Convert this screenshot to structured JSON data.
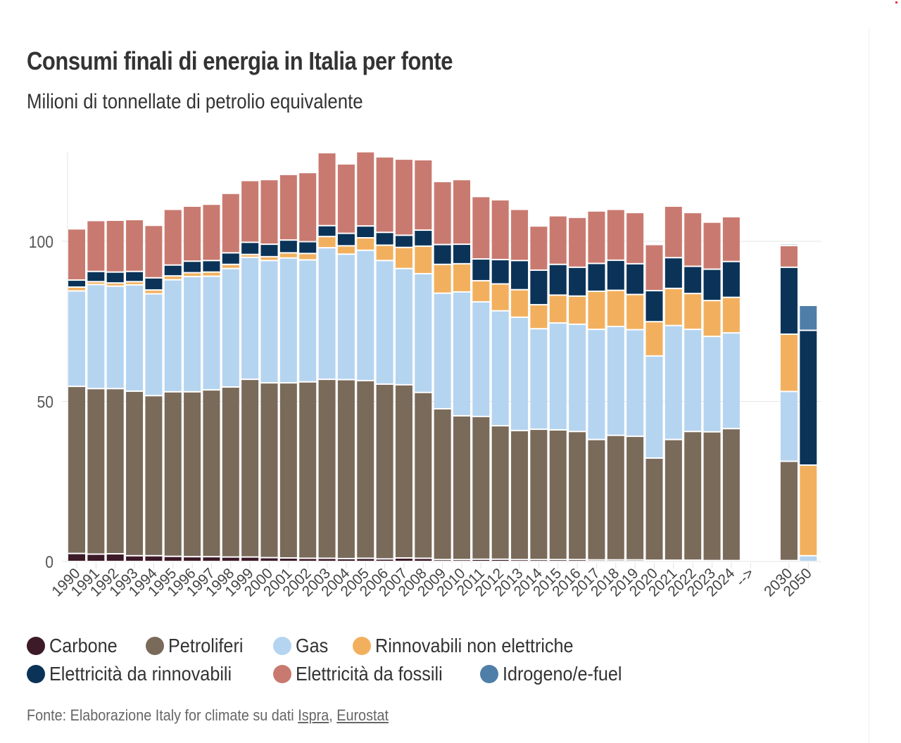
{
  "header": {
    "title": "Consumi finali di energia in Italia per fonte",
    "subtitle": "Milioni di tonnellate di petrolio equivalente"
  },
  "footer": {
    "prefix": "Fonte: Elaborazione Italy for climate su dati ",
    "link1": "Ispra",
    "separator": ", ",
    "link2": "Eurostat"
  },
  "chart_data": {
    "type": "bar",
    "stacked": true,
    "title": "Consumi finali di energia in Italia per fonte",
    "subtitle": "Milioni di tonnellate di petrolio equivalente",
    "xlabel": "",
    "ylabel": "",
    "ylim": [
      0,
      130
    ],
    "yticks": [
      0,
      50,
      100
    ],
    "grid": true,
    "legend_position": "bottom",
    "categories": [
      "1990",
      "1991",
      "1992",
      "1993",
      "1994",
      "1995",
      "1996",
      "1997",
      "1998",
      "1999",
      "2000",
      "2001",
      "2002",
      "2003",
      "2004",
      "2005",
      "2006",
      "2007",
      "2008",
      "2009",
      "2010",
      "2011",
      "2012",
      "2013",
      "2014",
      "2015",
      "2016",
      "2017",
      "2018",
      "2019",
      "2020",
      "2021",
      "2022",
      "2023",
      "2024",
      "-->",
      "2030",
      "2050"
    ],
    "gap_category": "-->",
    "series": [
      {
        "key": "carbone",
        "name": "Carbone",
        "color": "#3d1a28",
        "values": [
          2.5,
          2.3,
          2.4,
          1.8,
          1.8,
          1.6,
          1.5,
          1.5,
          1.4,
          1.4,
          1.2,
          1.1,
          1.0,
          1.0,
          0.9,
          1.0,
          0.8,
          1.1,
          1.0,
          0.6,
          0.6,
          0.7,
          0.7,
          0.6,
          0.6,
          0.6,
          0.6,
          0.5,
          0.5,
          0.5,
          0.4,
          0.4,
          0.4,
          0.3,
          0.3,
          null,
          0.3,
          0
        ]
      },
      {
        "key": "petroliferi",
        "name": "Petroliferi",
        "color": "#7a6a5a",
        "values": [
          52.2,
          51.7,
          51.6,
          51.4,
          50.0,
          51.4,
          51.5,
          52.1,
          53.1,
          55.5,
          54.6,
          54.7,
          55.1,
          55.9,
          55.9,
          55.5,
          54.6,
          54.1,
          51.8,
          47.1,
          44.9,
          44.6,
          41.7,
          40.3,
          40.7,
          40.5,
          40.0,
          37.6,
          38.9,
          38.6,
          31.9,
          37.7,
          40.2,
          40.2,
          41.2,
          null,
          31.0,
          0
        ]
      },
      {
        "key": "gas",
        "name": "Gas",
        "color": "#b5d4f0",
        "values": [
          29.8,
          32.5,
          32.0,
          33.2,
          31.8,
          35.0,
          36.0,
          35.5,
          37.0,
          38.1,
          38.2,
          39.0,
          38.1,
          41.1,
          39.2,
          40.7,
          38.6,
          36.3,
          37.1,
          36.1,
          38.7,
          35.8,
          35.9,
          35.4,
          31.4,
          33.4,
          33.5,
          34.4,
          34.0,
          33.3,
          31.9,
          35.6,
          31.9,
          29.8,
          29.9,
          null,
          21.8,
          1.8
        ]
      },
      {
        "key": "rinnovabili_non_elettriche",
        "name": "Rinnovabili non elettriche",
        "color": "#f2b05e",
        "values": [
          1.2,
          0.9,
          1.0,
          1.0,
          1.2,
          1.2,
          1.2,
          1.3,
          1.3,
          0.9,
          1.2,
          1.6,
          2.0,
          3.5,
          2.6,
          3.9,
          4.8,
          6.6,
          8.6,
          9.0,
          8.8,
          6.6,
          8.4,
          8.6,
          7.5,
          8.7,
          8.8,
          11.9,
          11.3,
          11.0,
          10.7,
          11.6,
          11.2,
          11.2,
          11.1,
          null,
          17.9,
          28.3
        ]
      },
      {
        "key": "elettricita_rinnovabili",
        "name": "Elettricità da rinnovabili",
        "color": "#0b3358",
        "values": [
          2.2,
          3.2,
          3.4,
          3.2,
          3.8,
          3.4,
          3.6,
          3.6,
          3.6,
          3.8,
          3.9,
          4.0,
          3.7,
          3.4,
          3.9,
          3.7,
          4.0,
          3.8,
          5.0,
          6.2,
          6.1,
          6.8,
          7.6,
          9.1,
          10.8,
          9.6,
          9.0,
          8.7,
          9.4,
          9.6,
          9.7,
          9.6,
          8.5,
          9.8,
          11.2,
          null,
          20.9,
          42.1
        ]
      },
      {
        "key": "elettricita_fossili",
        "name": "Elettricità da fossili",
        "color": "#c97a70",
        "values": [
          16.0,
          15.9,
          16.2,
          16.2,
          16.4,
          17.4,
          17.2,
          17.6,
          18.6,
          19.3,
          20.2,
          20.5,
          21.6,
          22.8,
          21.7,
          23.2,
          23.6,
          23.8,
          22.0,
          19.7,
          20.2,
          19.5,
          18.7,
          16.0,
          13.8,
          15.2,
          15.6,
          16.4,
          15.9,
          16.0,
          14.4,
          16.1,
          16.8,
          14.7,
          14.0,
          null,
          6.8,
          0
        ]
      },
      {
        "key": "idrogeno_efuel",
        "name": "Idrogeno/e-fuel",
        "color": "#4f7ea8",
        "values": [
          0,
          0,
          0,
          0,
          0,
          0,
          0,
          0,
          0,
          0,
          0,
          0,
          0,
          0,
          0,
          0,
          0,
          0,
          0,
          0,
          0,
          0,
          0,
          0,
          0,
          0,
          0,
          0,
          0,
          0,
          0,
          0,
          0,
          0,
          0,
          null,
          0.5,
          7.8
        ]
      }
    ]
  }
}
